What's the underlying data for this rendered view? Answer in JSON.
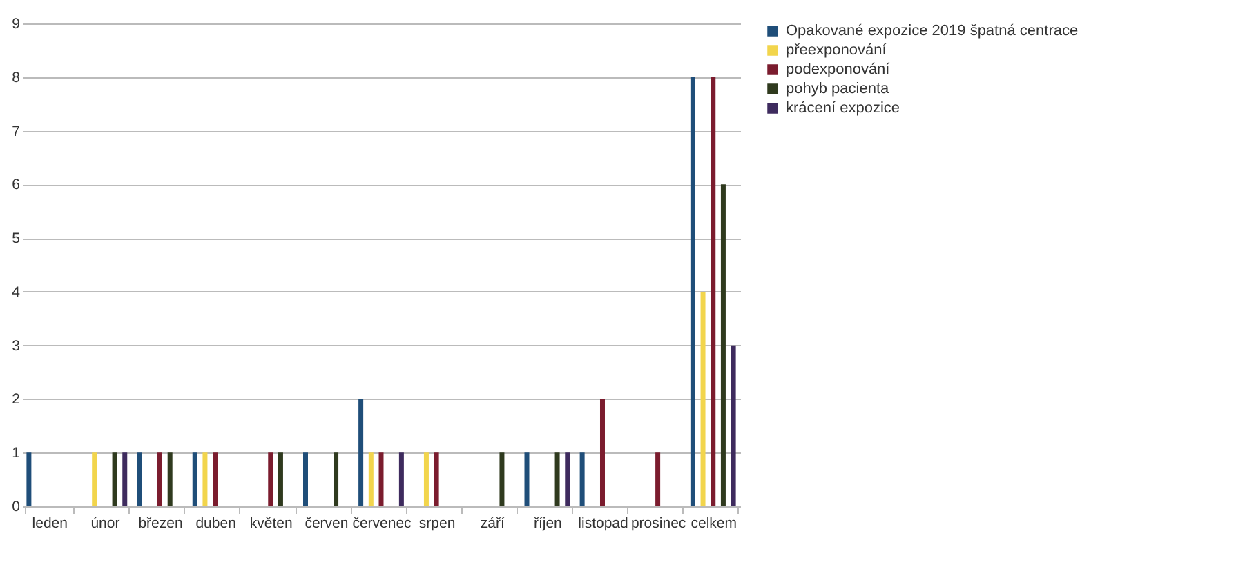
{
  "chart_data": {
    "type": "bar",
    "categories": [
      "leden",
      "únor",
      "březen",
      "duben",
      "květen",
      "červen",
      "červenec",
      "srpen",
      "září",
      "říjen",
      "listopad",
      "prosinec",
      "celkem"
    ],
    "series": [
      {
        "name": "Opakované expozice 2019 špatná centrace",
        "color": "#1f4e79",
        "values": [
          1,
          0,
          1,
          1,
          0,
          1,
          2,
          0,
          0,
          1,
          1,
          0,
          8
        ]
      },
      {
        "name": "přeexponování",
        "color": "#f2d54c",
        "values": [
          0,
          1,
          0,
          1,
          0,
          0,
          1,
          1,
          0,
          0,
          0,
          0,
          4
        ]
      },
      {
        "name": "podexponování",
        "color": "#7b1c2e",
        "values": [
          0,
          0,
          1,
          1,
          1,
          0,
          1,
          1,
          0,
          0,
          2,
          1,
          8
        ]
      },
      {
        "name": "pohyb pacienta",
        "color": "#2f3a1e",
        "values": [
          0,
          1,
          1,
          0,
          1,
          1,
          0,
          0,
          1,
          1,
          0,
          0,
          6
        ]
      },
      {
        "name": "krácení expozice",
        "color": "#3e2b5e",
        "values": [
          0,
          1,
          0,
          0,
          0,
          0,
          1,
          0,
          0,
          1,
          0,
          0,
          3
        ]
      }
    ],
    "ylim": [
      0,
      9
    ],
    "yticks": [
      0,
      1,
      2,
      3,
      4,
      5,
      6,
      7,
      8,
      9
    ],
    "grid": "y",
    "legend": "right"
  }
}
